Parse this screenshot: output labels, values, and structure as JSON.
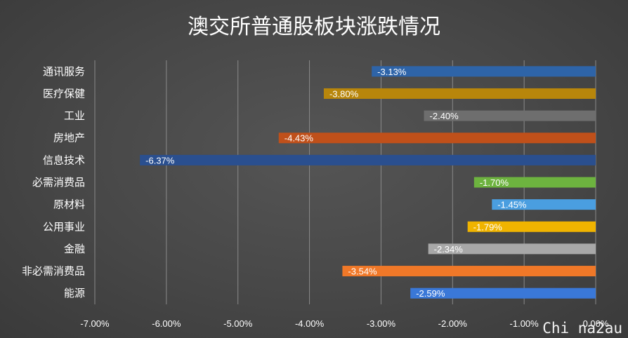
{
  "chart_data": {
    "type": "bar",
    "orientation": "horizontal",
    "title": "澳交所普通股板块涨跌情况",
    "categories": [
      "通讯服务",
      "医疗保健",
      "工业",
      "房地产",
      "信息技术",
      "必需消费品",
      "原材料",
      "公用事业",
      "金融",
      "非必需消费品",
      "能源"
    ],
    "values": [
      -3.13,
      -3.8,
      -2.4,
      -4.43,
      -6.37,
      -1.7,
      -1.45,
      -1.79,
      -2.34,
      -3.54,
      -2.59
    ],
    "data_labels": [
      "-3.13%",
      "-3.80%",
      "-2.40%",
      "-4.43%",
      "-6.37%",
      "-1.70%",
      "-1.45%",
      "-1.79%",
      "-2.34%",
      "-3.54%",
      "-2.59%"
    ],
    "colors": [
      "#2e64a8",
      "#b8860b",
      "#6e6e6e",
      "#c0501a",
      "#2a4f8f",
      "#6db33f",
      "#4a9ee0",
      "#f0b400",
      "#a8a8a8",
      "#f07828",
      "#3a78d8"
    ],
    "xlim": [
      -7,
      0
    ],
    "xticks": [
      -7,
      -6,
      -5,
      -4,
      -3,
      -2,
      -1,
      0
    ],
    "xtick_labels": [
      "-7.00%",
      "-6.00%",
      "-5.00%",
      "-4.00%",
      "-3.00%",
      "-2.00%",
      "-1.00%",
      "0.00%"
    ],
    "grid": true,
    "legend": "none"
  },
  "watermark": "Chi na2au"
}
